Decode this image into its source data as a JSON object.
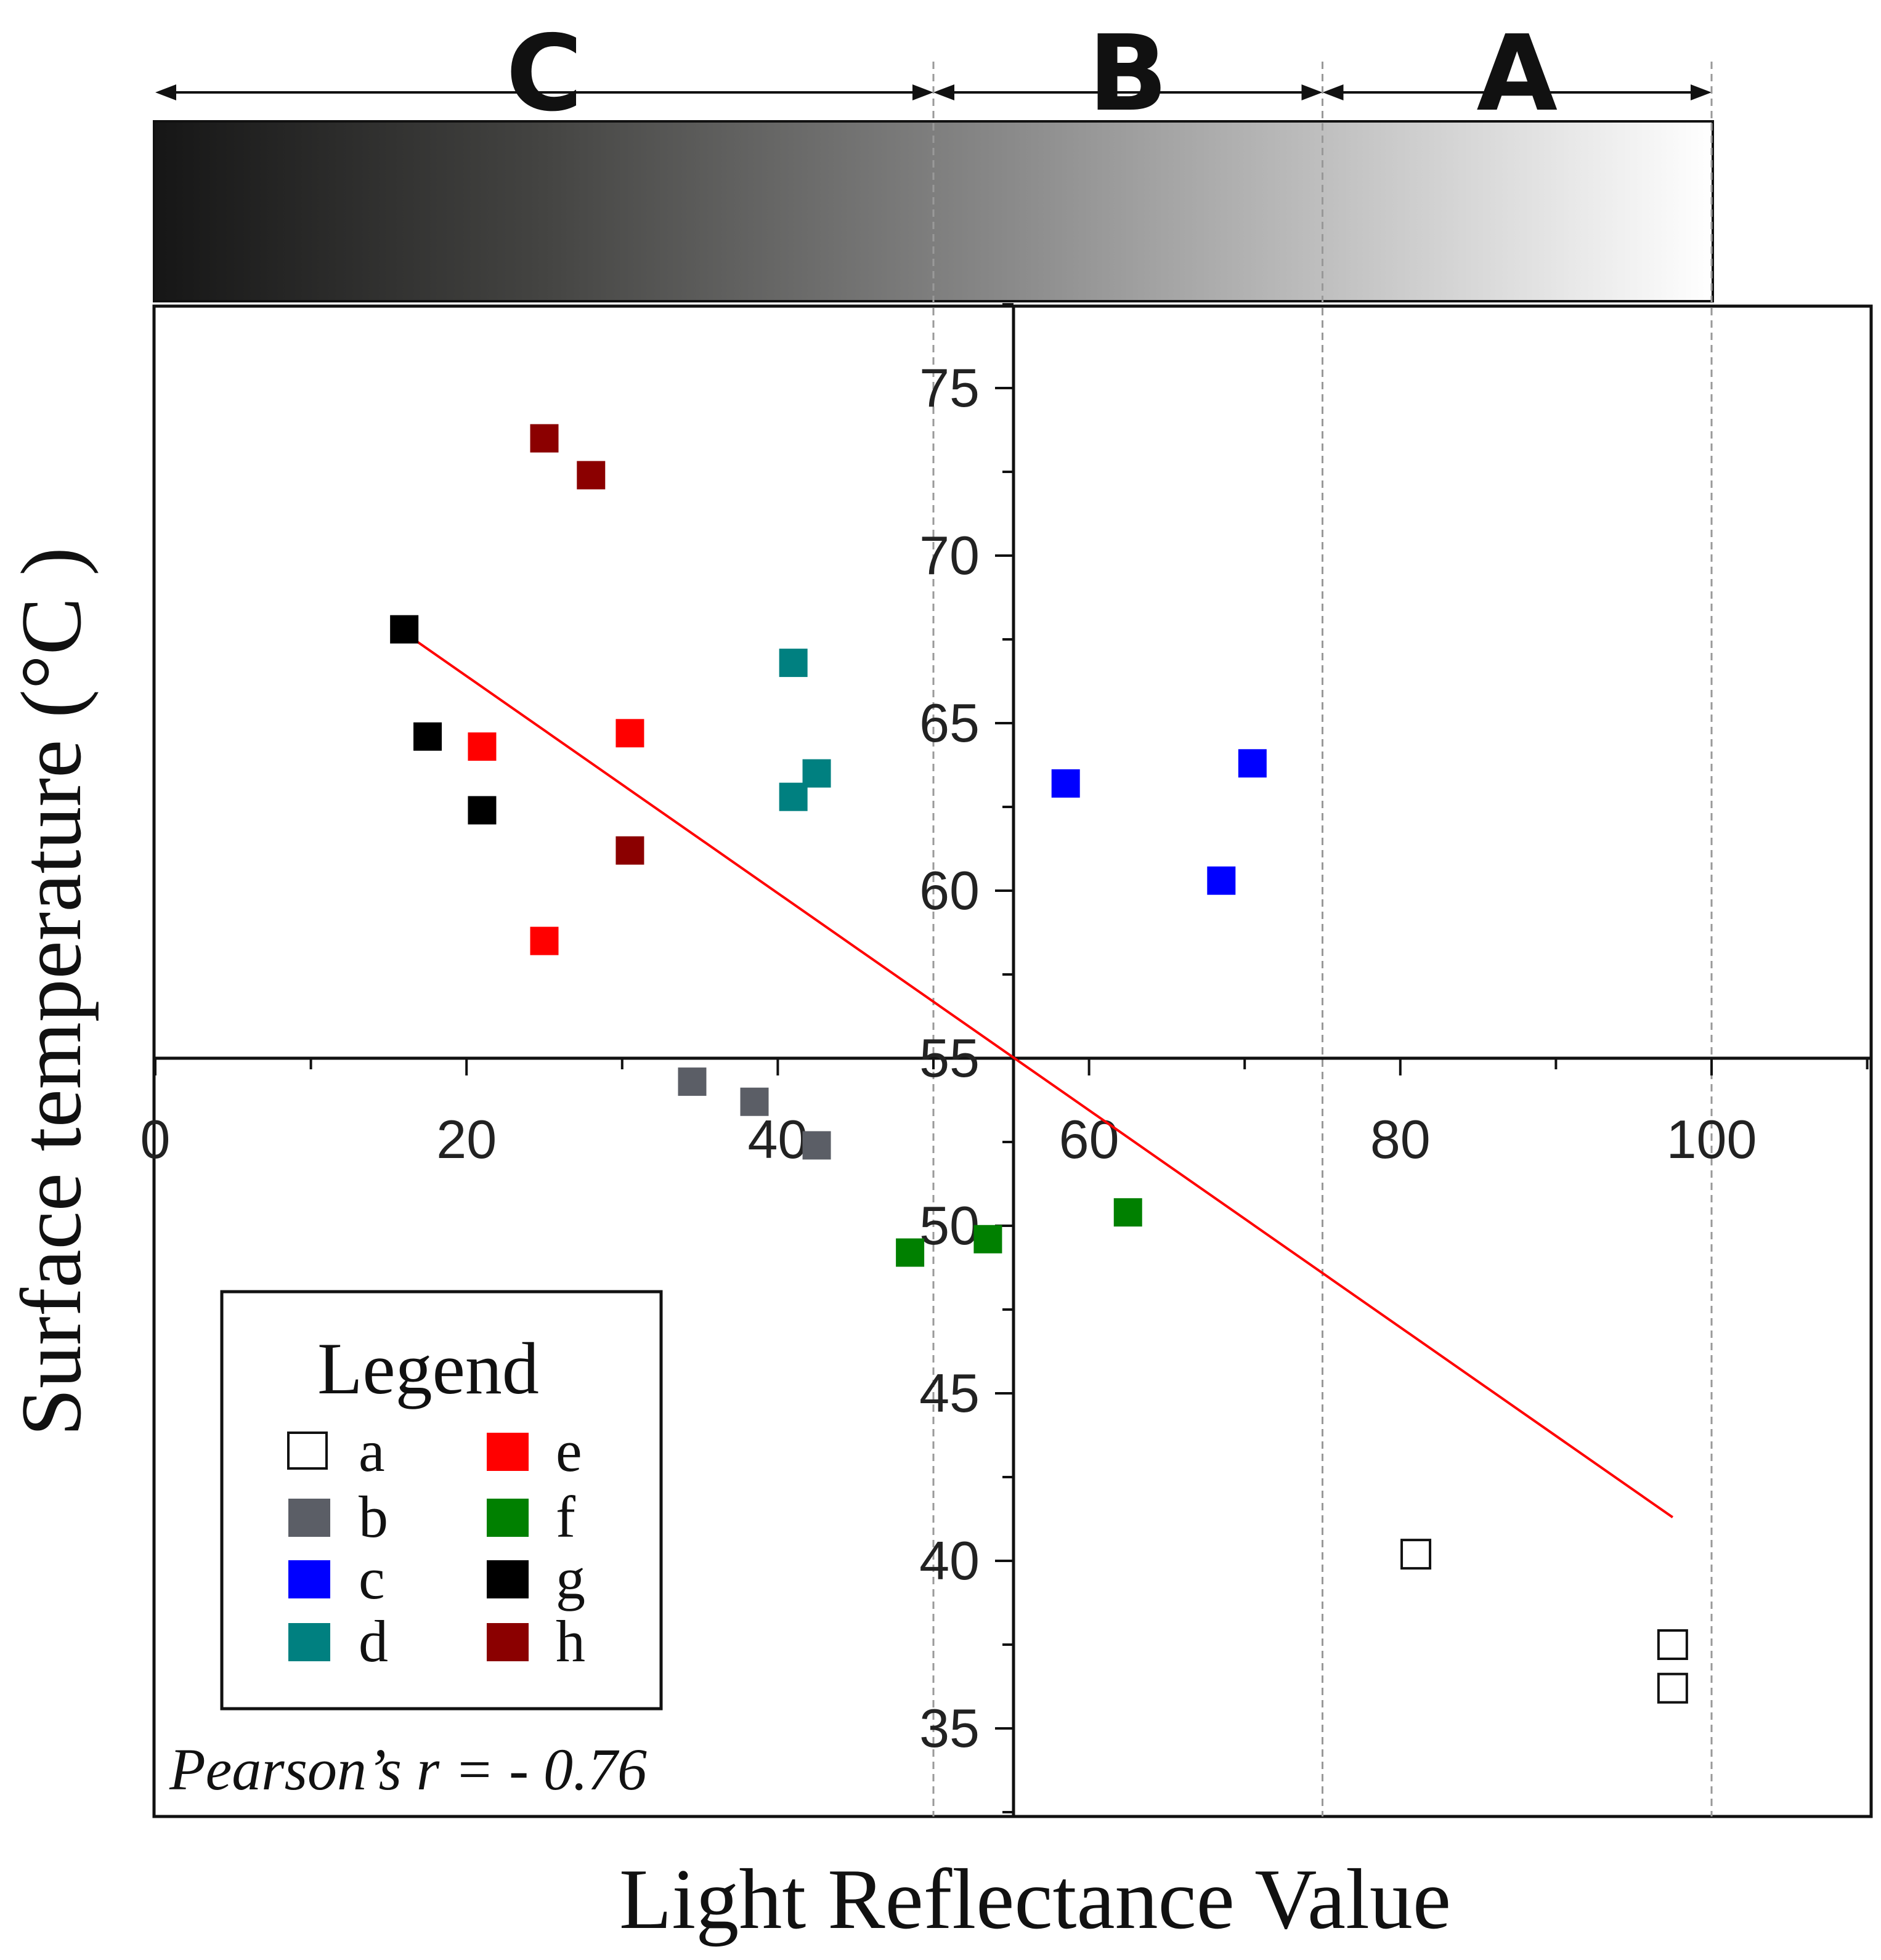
{
  "chart_data": {
    "type": "scatter",
    "title": "",
    "xlabel": "Light Reflectance Value",
    "ylabel": "Surface temperature (°C )",
    "xlim": [
      0,
      110
    ],
    "ylim": [
      32,
      77.5
    ],
    "x_ticks": [
      "0",
      "20",
      "40",
      "60",
      "80",
      "100"
    ],
    "y_ticks": [
      "35",
      "40",
      "45",
      "50",
      "55",
      "60",
      "65",
      "70",
      "75"
    ],
    "zones": [
      {
        "label": "C",
        "from": 0,
        "to": 50
      },
      {
        "label": "B",
        "from": 50,
        "to": 75
      },
      {
        "label": "A",
        "from": 75,
        "to": 100
      }
    ],
    "series": [
      {
        "name": "a",
        "color": "#ffffff",
        "outline": "#111111",
        "points": [
          [
            81,
            40.2
          ],
          [
            97.5,
            37.5
          ],
          [
            97.5,
            36.2
          ]
        ]
      },
      {
        "name": "b",
        "color": "#5b5e66",
        "points": [
          [
            34.5,
            54.3
          ],
          [
            38.5,
            53.7
          ],
          [
            42.5,
            52.4
          ]
        ]
      },
      {
        "name": "c",
        "color": "#0000ff",
        "points": [
          [
            58.5,
            63.2
          ],
          [
            68.5,
            60.3
          ],
          [
            70.5,
            63.8
          ]
        ]
      },
      {
        "name": "d",
        "color": "#008080",
        "points": [
          [
            41,
            66.8
          ],
          [
            41,
            62.8
          ],
          [
            42.5,
            63.5
          ]
        ]
      },
      {
        "name": "e",
        "color": "#ff0000",
        "points": [
          [
            21,
            64.3
          ],
          [
            30.5,
            64.7
          ],
          [
            25,
            58.5
          ]
        ]
      },
      {
        "name": "f",
        "color": "#008000",
        "points": [
          [
            48.5,
            49.2
          ],
          [
            53.5,
            49.6
          ],
          [
            62.5,
            50.4
          ]
        ]
      },
      {
        "name": "g",
        "color": "#000000",
        "points": [
          [
            16,
            67.8
          ],
          [
            17.5,
            64.6
          ],
          [
            21,
            62.4
          ]
        ]
      },
      {
        "name": "h",
        "color": "#8b0000",
        "points": [
          [
            25,
            73.5
          ],
          [
            28,
            72.4
          ],
          [
            30.5,
            61.2
          ]
        ]
      }
    ],
    "trendline": {
      "color": "#ff0000",
      "points": [
        [
          16,
          67.7
        ],
        [
          97.5,
          41.3
        ]
      ]
    },
    "annotation": "Pearson’s r = - 0.76",
    "legend": {
      "title": "Legend",
      "placement": "bottom-left"
    }
  },
  "colors": {
    "gradient_dark": "#161616",
    "gradient_mid": "#7a7a7a",
    "gradient_light": "#ffffff"
  }
}
